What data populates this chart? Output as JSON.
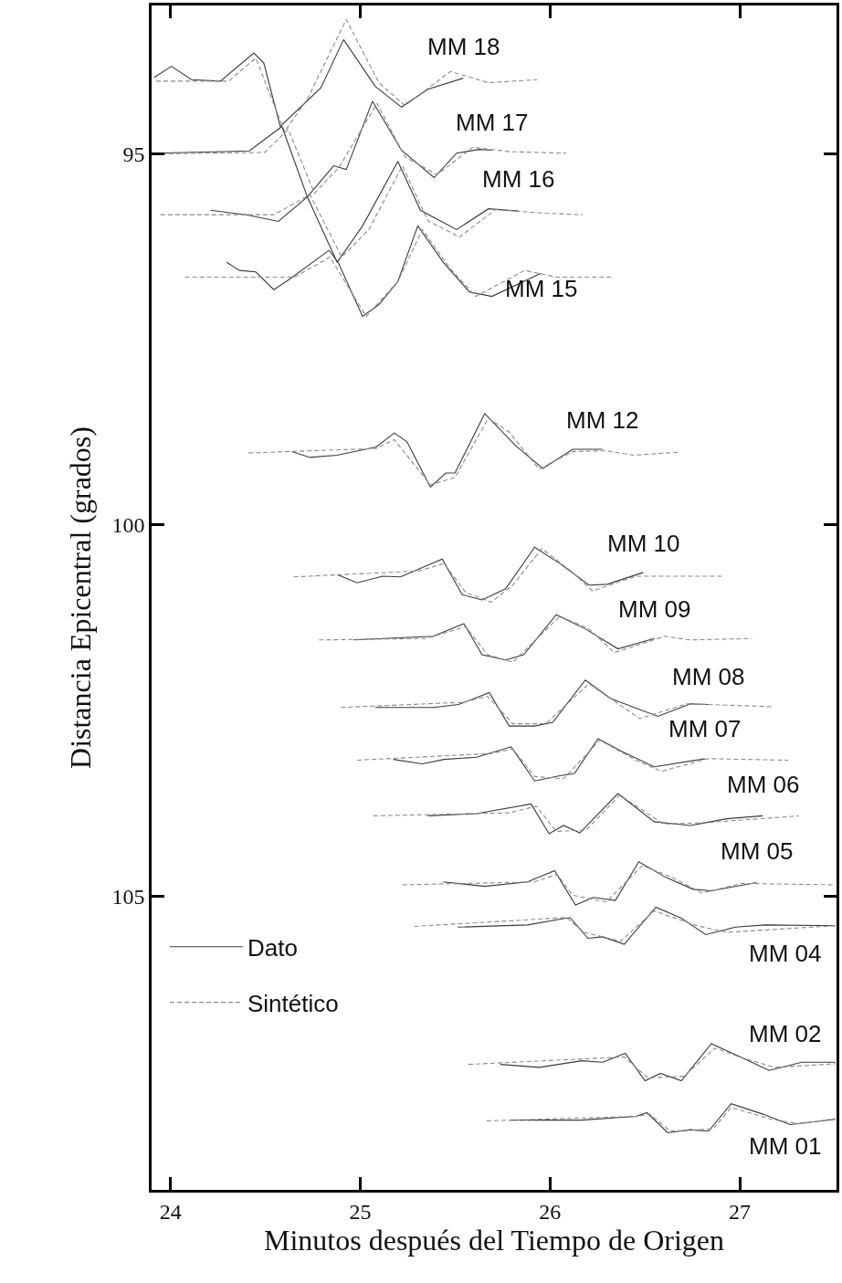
{
  "chart_data": {
    "type": "line",
    "xlabel": "Minutos después del Tiempo de Origen",
    "ylabel": "Distancia Epicentral (grados)",
    "xlim": [
      23.9,
      27.51
    ],
    "ylim": [
      108.96,
      93.0
    ],
    "xticks": [
      24,
      25,
      26,
      27
    ],
    "yticks": [
      95,
      100,
      105
    ],
    "legend": "bottom left",
    "marker": "none",
    "series": [
      {
        "name": "Dato",
        "color": "#3a3a3a",
        "line_style": "solid",
        "x": [
          23.914,
          24.005,
          24.11,
          24.263,
          24.439,
          24.492,
          24.578,
          24.706,
          24.792,
          24.912,
          25.079,
          25.217,
          25.356,
          25.542
        ],
        "values": [
          93.97,
          93.82,
          94.0,
          94.02,
          93.64,
          93.78,
          94.63,
          94.32,
          94.11,
          93.46,
          94.09,
          94.37,
          94.13,
          93.98
        ]
      },
      {
        "name": "Sintético",
        "color": "#8a8a8a",
        "line_style": "dashed",
        "x": [
          23.924,
          24.305,
          24.449,
          24.601,
          24.721,
          24.926,
          25.098,
          25.236,
          25.475,
          25.675,
          25.933
        ],
        "values": [
          94.02,
          94.02,
          93.71,
          94.7,
          94.26,
          93.19,
          94.04,
          94.35,
          93.89,
          94.04,
          94.0
        ]
      },
      {
        "color": "#3a3a3a",
        "line_style": "solid",
        "x": [
          23.914,
          24.415,
          24.587,
          24.721,
          24.859,
          24.926,
          25.064,
          25.217,
          25.389,
          25.508,
          25.628,
          25.694
        ],
        "values": [
          94.99,
          94.96,
          94.63,
          95.58,
          95.16,
          95.21,
          94.29,
          94.95,
          95.32,
          94.99,
          94.94,
          94.95
        ]
      },
      {
        "color": "#8a8a8a",
        "line_style": "dashed",
        "x": [
          23.914,
          24.496,
          24.62,
          24.759,
          24.888,
          25.088,
          25.236,
          25.403,
          25.594,
          25.785,
          26.086
        ],
        "values": [
          95.0,
          94.98,
          94.67,
          95.53,
          95.18,
          94.32,
          95.04,
          95.28,
          94.91,
          94.97,
          94.99
        ]
      },
      {
        "color": "#3a3a3a",
        "line_style": "solid",
        "x": [
          24.21,
          24.401,
          24.568,
          24.721,
          24.878,
          25.012,
          25.198,
          25.317,
          25.508,
          25.675,
          25.833
        ],
        "values": [
          95.76,
          95.82,
          95.91,
          95.58,
          96.46,
          95.97,
          95.1,
          95.76,
          96.02,
          95.74,
          95.77
        ]
      },
      {
        "color": "#8a8a8a",
        "line_style": "dashed",
        "x": [
          23.947,
          24.544,
          24.735,
          24.902,
          25.045,
          25.222,
          25.356,
          25.523,
          25.713,
          25.976,
          26.172
        ],
        "values": [
          95.82,
          95.82,
          95.55,
          96.39,
          96.02,
          95.16,
          95.9,
          96.12,
          95.75,
          95.8,
          95.82
        ]
      },
      {
        "color": "#3a3a3a",
        "line_style": "solid",
        "x": [
          24.296,
          24.363,
          24.449,
          24.544,
          24.62,
          24.835,
          24.883,
          25.012,
          25.098,
          25.198,
          25.303,
          25.437,
          25.575,
          25.694,
          25.952
        ],
        "values": [
          96.46,
          96.57,
          96.59,
          96.83,
          96.7,
          96.3,
          96.46,
          97.19,
          97.03,
          96.72,
          95.97,
          96.46,
          96.86,
          96.92,
          96.61
        ]
      },
      {
        "color": "#8a8a8a",
        "line_style": "dashed",
        "x": [
          24.076,
          24.654,
          24.84,
          25.031,
          25.198,
          25.327,
          25.475,
          25.609,
          25.866,
          26.033,
          26.325
        ],
        "values": [
          96.66,
          96.66,
          96.39,
          97.19,
          96.72,
          96.02,
          96.55,
          96.92,
          96.57,
          96.66,
          96.66
        ]
      },
      {
        "color": "#3a3a3a",
        "line_style": "solid",
        "x": [
          24.64,
          24.735,
          24.878,
          25.084,
          25.179,
          25.246,
          25.37,
          25.451,
          25.499,
          25.656,
          25.818,
          25.962,
          26.119,
          26.277
        ],
        "values": [
          99.01,
          99.09,
          99.06,
          98.95,
          98.76,
          98.88,
          99.49,
          99.3,
          99.3,
          98.5,
          98.93,
          99.24,
          98.98,
          98.98
        ]
      },
      {
        "color": "#8a8a8a",
        "line_style": "dashed",
        "x": [
          24.411,
          25.084,
          25.179,
          25.37,
          25.499,
          25.675,
          25.785,
          25.943,
          26.119,
          26.296,
          26.439,
          26.678
        ],
        "values": [
          99.03,
          98.97,
          98.85,
          99.46,
          99.36,
          98.56,
          98.75,
          99.25,
          99.01,
          99.0,
          99.06,
          99.02
        ]
      },
      {
        "color": "#3a3a3a",
        "line_style": "solid",
        "x": [
          24.878,
          24.983,
          25.117,
          25.212,
          25.432,
          25.537,
          25.642,
          25.766,
          25.919,
          26.052,
          26.205,
          26.301,
          26.491
        ],
        "values": [
          100.67,
          100.78,
          100.69,
          100.7,
          100.46,
          100.94,
          101.01,
          100.86,
          100.3,
          100.52,
          100.81,
          100.8,
          100.64
        ]
      },
      {
        "color": "#8a8a8a",
        "line_style": "dashed",
        "x": [
          24.649,
          25.308,
          25.441,
          25.556,
          25.69,
          25.804,
          25.957,
          26.11,
          26.224,
          26.453,
          26.625,
          26.921
        ],
        "values": [
          100.7,
          100.62,
          100.52,
          100.91,
          101.04,
          100.81,
          100.32,
          100.62,
          100.89,
          100.69,
          100.69,
          100.69
        ]
      },
      {
        "color": "#3a3a3a",
        "line_style": "solid",
        "x": [
          24.964,
          25.384,
          25.546,
          25.642,
          25.766,
          25.861,
          26.033,
          26.186,
          26.358,
          26.549
        ],
        "values": [
          101.55,
          101.5,
          101.33,
          101.75,
          101.82,
          101.75,
          101.21,
          101.4,
          101.67,
          101.53
        ]
      },
      {
        "color": "#8a8a8a",
        "line_style": "dashed",
        "x": [
          24.783,
          25.346,
          25.556,
          25.671,
          25.804,
          26.052,
          26.205,
          26.339,
          26.606,
          26.74,
          27.064
        ],
        "values": [
          101.55,
          101.53,
          101.37,
          101.75,
          101.85,
          101.23,
          101.4,
          101.72,
          101.5,
          101.55,
          101.53
        ]
      },
      {
        "color": "#3a3a3a",
        "line_style": "solid",
        "x": [
          25.079,
          25.384,
          25.518,
          25.68,
          25.785,
          25.919,
          26.014,
          26.186,
          26.32,
          26.568,
          26.74,
          26.835
        ],
        "values": [
          102.46,
          102.46,
          102.42,
          102.26,
          102.71,
          102.71,
          102.66,
          102.09,
          102.34,
          102.58,
          102.41,
          102.42
        ]
      },
      {
        "color": "#8a8a8a",
        "line_style": "dashed",
        "x": [
          24.897,
          25.537,
          25.671,
          25.804,
          25.976,
          26.205,
          26.377,
          26.472,
          26.721,
          27.179
        ],
        "values": [
          102.46,
          102.39,
          102.31,
          102.68,
          102.68,
          102.14,
          102.44,
          102.61,
          102.41,
          102.45
        ]
      },
      {
        "color": "#3a3a3a",
        "line_style": "solid",
        "x": [
          25.174,
          25.327,
          25.441,
          25.613,
          25.795,
          25.919,
          26.052,
          26.129,
          26.253,
          26.377,
          26.549,
          26.816
        ],
        "values": [
          103.16,
          103.22,
          103.16,
          103.13,
          102.99,
          103.45,
          103.38,
          103.35,
          102.88,
          103.05,
          103.26,
          103.15
        ]
      },
      {
        "color": "#8a8a8a",
        "line_style": "dashed",
        "x": [
          24.983,
          25.69,
          25.804,
          25.919,
          26.071,
          26.262,
          26.453,
          26.587,
          26.835,
          27.255
        ],
        "values": [
          103.17,
          103.08,
          103.02,
          103.39,
          103.42,
          102.9,
          103.17,
          103.32,
          103.15,
          103.17
        ]
      },
      {
        "color": "#3a3a3a",
        "line_style": "solid",
        "x": [
          25.356,
          25.613,
          25.9,
          25.995,
          26.071,
          26.157,
          26.358,
          26.549,
          26.74,
          26.931,
          27.122
        ],
        "values": [
          103.92,
          103.89,
          103.76,
          104.16,
          104.05,
          104.15,
          103.62,
          104.0,
          104.05,
          103.96,
          103.92
        ]
      },
      {
        "color": "#8a8a8a",
        "line_style": "dashed",
        "x": [
          25.069,
          25.785,
          25.928,
          26.033,
          26.191,
          26.368,
          26.597,
          26.835,
          27.312
        ],
        "values": [
          103.92,
          103.88,
          103.79,
          104.13,
          104.11,
          103.64,
          104.03,
          104.01,
          103.92
        ]
      },
      {
        "color": "#3a3a3a",
        "line_style": "solid",
        "x": [
          25.437,
          25.656,
          25.881,
          26.024,
          26.134,
          26.229,
          26.344,
          26.468,
          26.611,
          26.754,
          26.85,
          27.088
        ],
        "values": [
          104.81,
          104.87,
          104.81,
          104.66,
          105.12,
          105.02,
          105.06,
          104.54,
          104.75,
          104.91,
          104.93,
          104.82
        ]
      },
      {
        "color": "#8a8a8a",
        "line_style": "dashed",
        "x": [
          25.222,
          25.914,
          26.038,
          26.119,
          26.296,
          26.487,
          26.644,
          26.802,
          27.012,
          27.504
        ],
        "values": [
          104.85,
          104.81,
          104.71,
          104.99,
          105.08,
          104.59,
          104.75,
          104.96,
          104.83,
          104.85
        ]
      },
      {
        "color": "#3a3a3a",
        "line_style": "solid",
        "x": [
          25.513,
          25.881,
          26.105,
          26.2,
          26.277,
          26.391,
          26.558,
          26.692,
          26.821,
          26.978,
          27.136,
          27.504
        ],
        "values": [
          105.42,
          105.39,
          105.29,
          105.57,
          105.55,
          105.65,
          105.15,
          105.3,
          105.52,
          105.42,
          105.39,
          105.4
        ]
      },
      {
        "color": "#8a8a8a",
        "line_style": "dashed",
        "x": [
          25.284,
          26.086,
          26.181,
          26.372,
          26.549,
          26.773,
          26.931,
          27.504
        ],
        "values": [
          105.41,
          105.29,
          105.49,
          105.61,
          105.2,
          105.4,
          105.49,
          105.4
        ]
      },
      {
        "color": "#3a3a3a",
        "line_style": "solid",
        "x": [
          25.738,
          25.943,
          26.167,
          26.277,
          26.396,
          26.501,
          26.582,
          26.692,
          26.85,
          27.012,
          27.155,
          27.327,
          27.504
        ],
        "values": [
          107.27,
          107.31,
          107.22,
          107.24,
          107.12,
          107.49,
          107.39,
          107.49,
          106.99,
          107.18,
          107.35,
          107.24,
          107.24
        ]
      },
      {
        "color": "#8a8a8a",
        "line_style": "dashed",
        "x": [
          25.57,
          26.296,
          26.391,
          26.516,
          26.706,
          26.869,
          27.012,
          27.184,
          27.504
        ],
        "values": [
          107.27,
          107.18,
          107.17,
          107.45,
          107.43,
          107.05,
          107.18,
          107.31,
          107.26
        ]
      },
      {
        "color": "#3a3a3a",
        "line_style": "solid",
        "x": [
          25.785,
          26.167,
          26.453,
          26.511,
          26.621,
          26.74,
          26.835,
          26.955,
          27.122,
          27.265,
          27.504
        ],
        "values": [
          108.02,
          108.02,
          107.97,
          107.92,
          108.19,
          108.15,
          108.17,
          107.8,
          107.94,
          108.08,
          108.01
        ]
      },
      {
        "color": "#8a8a8a",
        "line_style": "dashed",
        "x": [
          25.666,
          26.453,
          26.525,
          26.635,
          26.859,
          26.955,
          27.169,
          27.313,
          27.504
        ],
        "values": [
          108.03,
          107.97,
          107.94,
          108.17,
          108.14,
          107.85,
          108.01,
          108.07,
          108.0
        ]
      }
    ],
    "annotations": [
      "MM 18",
      "MM 17",
      "MM 16",
      "MM 15",
      "MM 12",
      "MM 10",
      "MM 09",
      "MM 08",
      "MM 07",
      "MM 06",
      "MM 05",
      "MM 04",
      "MM 02",
      "MM 01"
    ]
  }
}
